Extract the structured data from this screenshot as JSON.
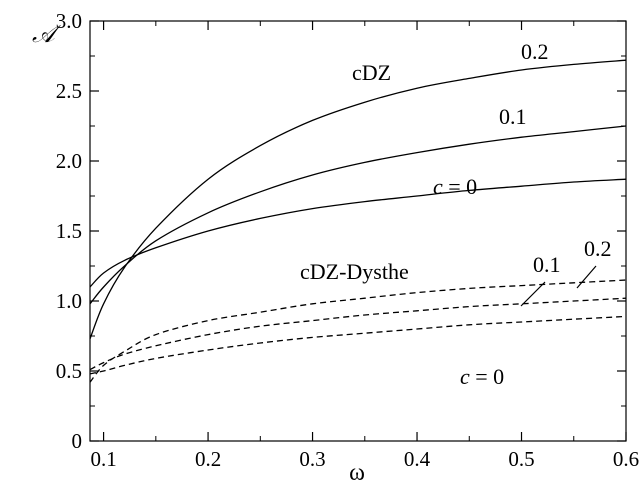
{
  "chart_data": {
    "type": "line",
    "title": "",
    "xlabel": "ω",
    "ylabel": "𝒜",
    "xlim": [
      0.087,
      0.6
    ],
    "ylim": [
      0,
      3.0
    ],
    "x_ticks": [
      0.1,
      0.2,
      0.3,
      0.4,
      0.5,
      0.6
    ],
    "x_tick_labels": [
      "0.1",
      "0.2",
      "0.3",
      "0.4",
      "0.5",
      "0.6"
    ],
    "y_ticks": [
      0,
      0.5,
      1.0,
      1.5,
      2.0,
      2.5,
      3.0
    ],
    "y_tick_labels": [
      "0",
      "0.5",
      "1.0",
      "1.5",
      "2.0",
      "2.5",
      "3.0"
    ],
    "grid": false,
    "annotations": {
      "cdz_group": "cDZ",
      "dysthe_group": "cDZ-Dysthe",
      "c_prefix": "c",
      "c_zero_suffix": " = 0",
      "solid_c01": "0.1",
      "solid_c02": "0.2",
      "dashed_c01": "0.1",
      "dashed_c02": "0.2"
    },
    "series": [
      {
        "group": "cDZ",
        "c": 0.2,
        "style": "solid",
        "x": [
          0.087,
          0.1,
          0.12,
          0.15,
          0.2,
          0.25,
          0.3,
          0.35,
          0.4,
          0.45,
          0.5,
          0.55,
          0.6
        ],
        "y": [
          0.73,
          0.98,
          1.24,
          1.52,
          1.87,
          2.11,
          2.29,
          2.42,
          2.52,
          2.59,
          2.65,
          2.69,
          2.72
        ]
      },
      {
        "group": "cDZ",
        "c": 0.1,
        "style": "solid",
        "x": [
          0.087,
          0.1,
          0.12,
          0.15,
          0.2,
          0.25,
          0.3,
          0.35,
          0.4,
          0.45,
          0.5,
          0.55,
          0.6
        ],
        "y": [
          0.98,
          1.1,
          1.25,
          1.43,
          1.63,
          1.78,
          1.9,
          1.99,
          2.06,
          2.12,
          2.17,
          2.21,
          2.25
        ]
      },
      {
        "group": "cDZ",
        "c": 0,
        "style": "solid",
        "x": [
          0.087,
          0.1,
          0.12,
          0.15,
          0.2,
          0.25,
          0.3,
          0.35,
          0.4,
          0.45,
          0.5,
          0.55,
          0.6
        ],
        "y": [
          1.1,
          1.2,
          1.29,
          1.38,
          1.5,
          1.59,
          1.66,
          1.71,
          1.75,
          1.79,
          1.82,
          1.85,
          1.87
        ]
      },
      {
        "group": "cDZ-Dysthe",
        "c": 0.2,
        "style": "dashed",
        "x": [
          0.087,
          0.1,
          0.12,
          0.15,
          0.2,
          0.25,
          0.3,
          0.35,
          0.4,
          0.45,
          0.5,
          0.55,
          0.6
        ],
        "y": [
          0.42,
          0.54,
          0.64,
          0.76,
          0.86,
          0.92,
          0.98,
          1.02,
          1.06,
          1.09,
          1.11,
          1.13,
          1.15
        ]
      },
      {
        "group": "cDZ-Dysthe",
        "c": 0.1,
        "style": "dashed",
        "x": [
          0.087,
          0.1,
          0.12,
          0.15,
          0.2,
          0.25,
          0.3,
          0.35,
          0.4,
          0.45,
          0.5,
          0.55,
          0.6
        ],
        "y": [
          0.51,
          0.56,
          0.62,
          0.68,
          0.76,
          0.82,
          0.86,
          0.9,
          0.93,
          0.96,
          0.98,
          1.0,
          1.02
        ]
      },
      {
        "group": "cDZ-Dysthe",
        "c": 0,
        "style": "dashed",
        "x": [
          0.087,
          0.1,
          0.12,
          0.15,
          0.2,
          0.25,
          0.3,
          0.35,
          0.4,
          0.45,
          0.5,
          0.55,
          0.6
        ],
        "y": [
          0.48,
          0.5,
          0.54,
          0.59,
          0.65,
          0.7,
          0.74,
          0.77,
          0.8,
          0.83,
          0.85,
          0.87,
          0.89
        ]
      }
    ]
  }
}
